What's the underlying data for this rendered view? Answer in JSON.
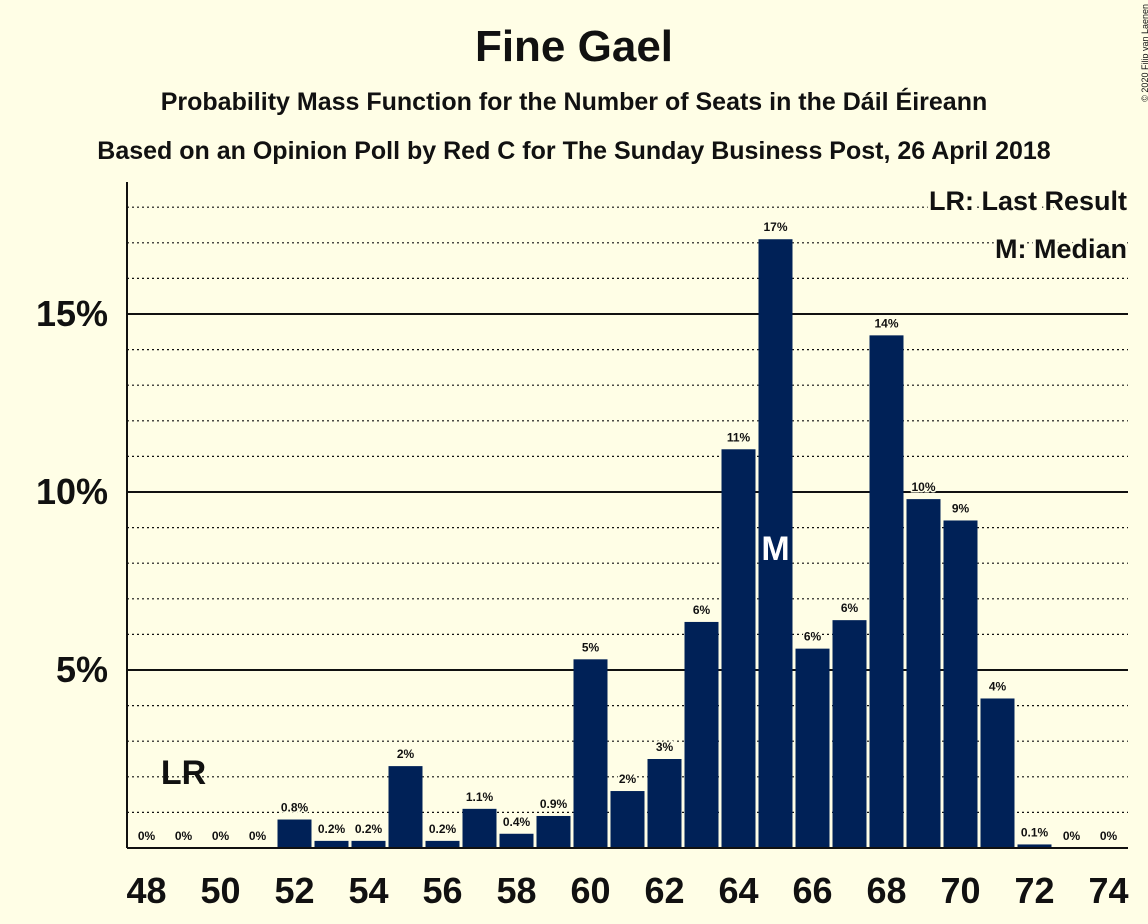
{
  "header": {
    "title": "Fine Gael",
    "subtitle": "Probability Mass Function for the Number of Seats in the Dáil Éireann",
    "source": "Based on an Opinion Poll by Red C for The Sunday Business Post, 26 April 2018",
    "copyright": "© 2020 Filip van Laenen"
  },
  "legend": {
    "lr": "LR: Last Result",
    "median": "M: Median"
  },
  "markers": {
    "last_result_label": "LR",
    "last_result_seat": 49,
    "median_label": "M",
    "median_seat": 65
  },
  "colors": {
    "bar": "#002157",
    "background": "#FFFEE6",
    "text": "#111111"
  },
  "chart_data": {
    "type": "bar",
    "categories": [
      48,
      49,
      50,
      51,
      52,
      53,
      54,
      55,
      56,
      57,
      58,
      59,
      60,
      61,
      62,
      63,
      64,
      65,
      66,
      67,
      68,
      69,
      70,
      71,
      72,
      73,
      74
    ],
    "values": [
      0,
      0,
      0,
      0,
      0.8,
      0.2,
      0.2,
      2.3,
      0.2,
      1.1,
      0.4,
      0.9,
      5.3,
      1.6,
      2.5,
      6.35,
      11.2,
      17.1,
      5.6,
      6.4,
      14.4,
      9.8,
      9.2,
      4.2,
      0.1,
      0,
      0
    ],
    "labels": [
      "0%",
      "0%",
      "0%",
      "0%",
      "0.8%",
      "0.2%",
      "0.2%",
      "2%",
      "0.2%",
      "1.1%",
      "0.4%",
      "0.9%",
      "5%",
      "2%",
      "3%",
      "6%",
      "11%",
      "17%",
      "6%",
      "6%",
      "14%",
      "10%",
      "9%",
      "4%",
      "0.1%",
      "0%",
      "0%"
    ],
    "x_tick_labels": [
      "48",
      "50",
      "52",
      "54",
      "56",
      "58",
      "60",
      "62",
      "64",
      "66",
      "68",
      "70",
      "72",
      "74"
    ],
    "y_ticks": [
      5,
      10,
      15
    ],
    "y_tick_labels": [
      "5%",
      "10%",
      "15%"
    ],
    "y_minor_step": 1,
    "ylim": [
      0,
      18.6
    ],
    "grid": true,
    "legend_position": "top-right"
  }
}
